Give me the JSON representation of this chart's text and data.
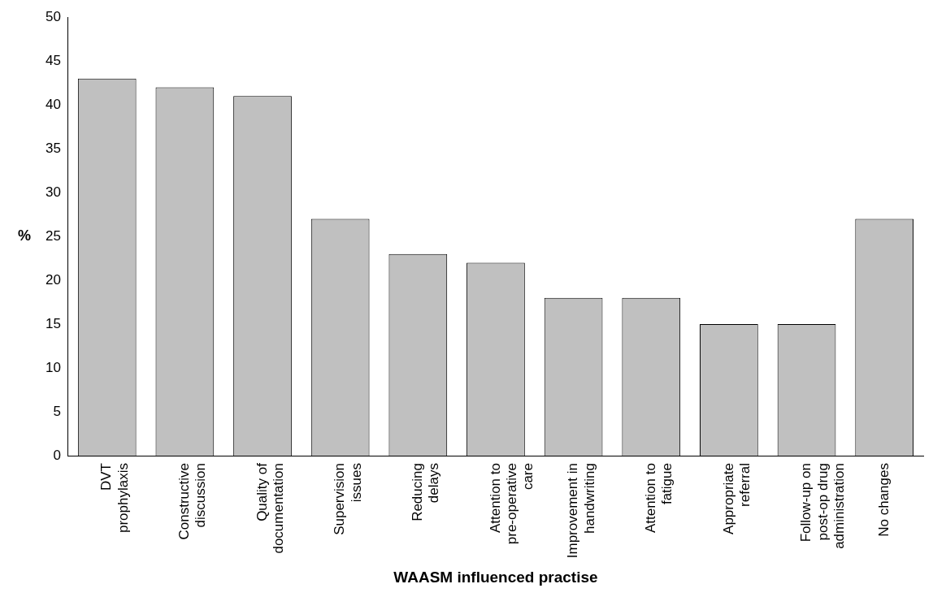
{
  "chart_data": {
    "type": "bar",
    "xlabel": "WAASM influenced practise",
    "ylabel": "%",
    "categories": [
      "DVT prophylaxis",
      "Constructive discussion",
      "Quality of documentation",
      "Supervision issues",
      "Reducing delays",
      "Attention to pre-operative care",
      "Improvement in handwriting",
      "Attention to fatigue",
      "Appropriate referral",
      "Follow-up on post-op drug administration",
      "No changes"
    ],
    "values": [
      43,
      42,
      41,
      27,
      23,
      22,
      18,
      18,
      15,
      15,
      27
    ],
    "color": "#c0c0c0",
    "ylim": [
      0,
      50
    ],
    "yticks": [
      0,
      5,
      10,
      15,
      20,
      25,
      30,
      35,
      40,
      45,
      50
    ],
    "grid": false,
    "legend": false
  }
}
